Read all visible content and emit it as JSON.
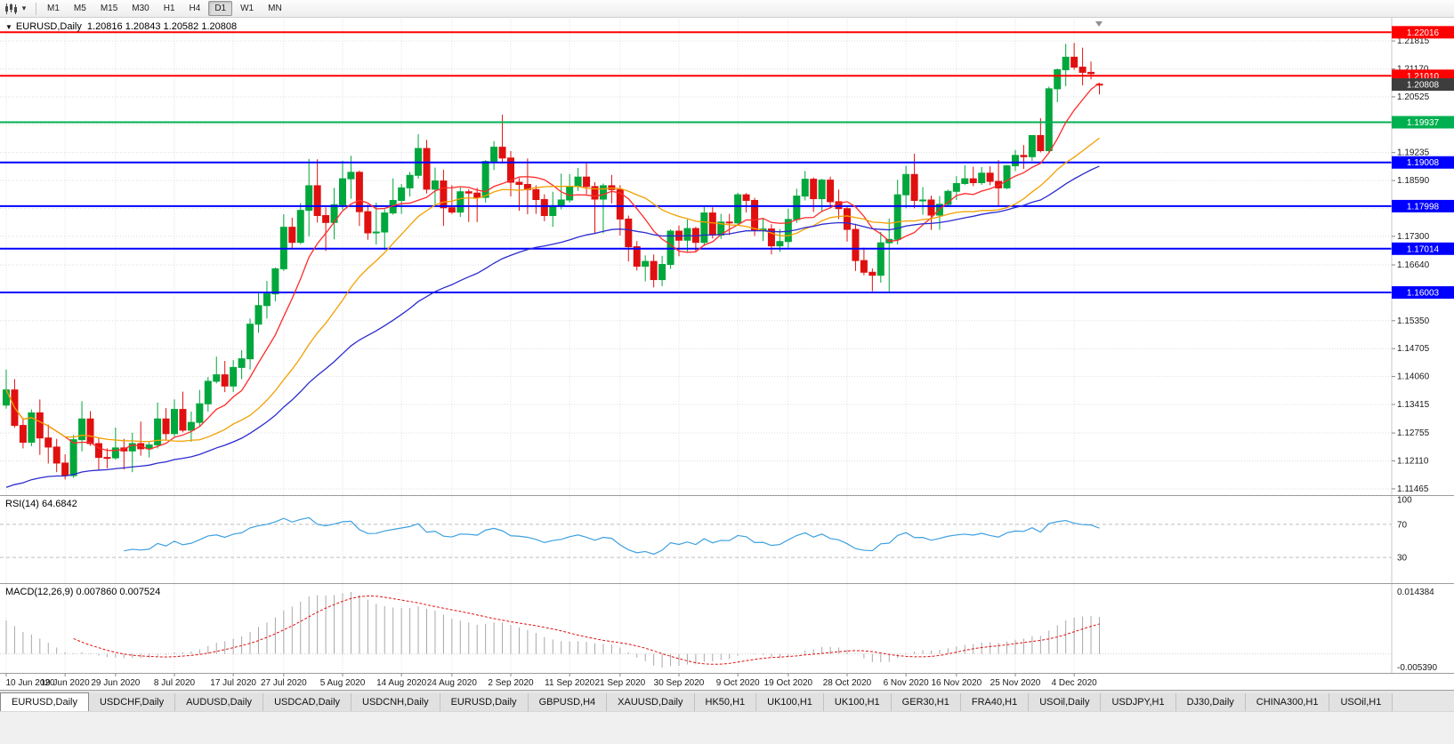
{
  "toolbar": {
    "timeframes": [
      "M1",
      "M5",
      "M15",
      "M30",
      "H1",
      "H4",
      "D1",
      "W1",
      "MN"
    ],
    "active_timeframe": "D1",
    "chart_type_icon": "candlestick-chart",
    "dropdown_caret": "▾"
  },
  "main_chart": {
    "collapse_icon": "▼",
    "symbol_text": "EURUSD,Daily",
    "ohlc_text": "1.20816 1.20843 1.20582 1.20808"
  },
  "rsi_panel": {
    "title_text": "RSI(14) 64.6842",
    "period": 14,
    "levels": [
      70,
      30
    ],
    "axis_labels": [
      "100",
      "70",
      "30"
    ],
    "line_color": "#3da0e0",
    "level_color": "#bfbfbf"
  },
  "macd_panel": {
    "title_text": "MACD(12,26,9) 0.007860 0.007524",
    "fast": 12,
    "slow": 26,
    "signal": 9,
    "axis_labels": [
      "0.014384",
      "-0.005390"
    ],
    "histogram_color": "#a8a8a8",
    "signal_color": "#e01010",
    "slow_seed_offset": -0.0075
  },
  "tabs": {
    "active_index": 0,
    "items": [
      "EURUSD,Daily",
      "USDCHF,Daily",
      "AUDUSD,Daily",
      "USDCAD,Daily",
      "USDCNH,Daily",
      "EURUSD,Daily",
      "GBPUSD,H4",
      "XAUUSD,Daily",
      "HK50,H1",
      "UK100,H1",
      "UK100,H1",
      "GER30,H1",
      "FRA40,H1",
      "USOil,Daily",
      "USDJPY,H1",
      "DJ30,Daily",
      "CHINA300,H1",
      "USOil,H1"
    ]
  },
  "chart_data": {
    "type": "candlestick",
    "symbol": "EURUSD",
    "timeframe": "Daily",
    "ohlc_display": {
      "open": "1.20816",
      "high": "1.20843",
      "low": "1.20582",
      "close": "1.20808"
    },
    "ylim": [
      1.1134,
      1.2231
    ],
    "colors": {
      "bull": "#00a73c",
      "bear": "#e01010",
      "grid": "#dedede",
      "background": "#ffffff",
      "axis_text": "#1a1a1a",
      "separator": "#9c9c9c",
      "shift_marker": "#909090"
    },
    "price_axis_labels": [
      "1.21815",
      "1.21170",
      "1.20525",
      "1.19880",
      "1.19235",
      "1.18590",
      "1.17945",
      "1.17300",
      "1.16640",
      "1.15995",
      "1.15350",
      "1.14705",
      "1.14060",
      "1.13415",
      "1.12755",
      "1.12110",
      "1.11465"
    ],
    "current_price": {
      "value": 1.20808,
      "label": "1.20808",
      "box_color": "#3d3d3d"
    },
    "hlines": [
      {
        "price": 1.22016,
        "label": "1.22016",
        "color": "#ff0000"
      },
      {
        "price": 1.2101,
        "label": "1.21010",
        "color": "#ff0000"
      },
      {
        "price": 1.19937,
        "label": "1.19937",
        "color": "#00b050"
      },
      {
        "price": 1.19008,
        "label": "1.19008",
        "color": "#0000ff"
      },
      {
        "price": 1.17998,
        "label": "1.17998",
        "color": "#0000ff"
      },
      {
        "price": 1.17014,
        "label": "1.17014",
        "color": "#0000ff"
      },
      {
        "price": 1.16003,
        "label": "1.16003",
        "color": "#0000ff"
      }
    ],
    "overlays": [
      {
        "name": "ma-fast",
        "type": "sma",
        "period": 8,
        "color": "#ff2a2a"
      },
      {
        "name": "ma-mid",
        "type": "sma",
        "period": 20,
        "color": "#f2a000"
      },
      {
        "name": "ma-slow",
        "type": "ema",
        "period": 45,
        "color": "#2b2bd0",
        "seed": 1.115
      }
    ],
    "x_ticks": [
      {
        "i": 0,
        "label": "10 Jun 2020"
      },
      {
        "i": 7,
        "label": "19 Jun 2020"
      },
      {
        "i": 13,
        "label": "29 Jun 2020"
      },
      {
        "i": 20,
        "label": "8 Jul 2020"
      },
      {
        "i": 27,
        "label": "17 Jul 2020"
      },
      {
        "i": 33,
        "label": "27 Jul 2020"
      },
      {
        "i": 40,
        "label": "5 Aug 2020"
      },
      {
        "i": 47,
        "label": "14 Aug 2020"
      },
      {
        "i": 53,
        "label": "24 Aug 2020"
      },
      {
        "i": 60,
        "label": "2 Sep 2020"
      },
      {
        "i": 67,
        "label": "11 Sep 2020"
      },
      {
        "i": 73,
        "label": "21 Sep 2020"
      },
      {
        "i": 80,
        "label": "30 Sep 2020"
      },
      {
        "i": 87,
        "label": "9 Oct 2020"
      },
      {
        "i": 93,
        "label": "19 Oct 2020"
      },
      {
        "i": 100,
        "label": "28 Oct 2020"
      },
      {
        "i": 107,
        "label": "6 Nov 2020"
      },
      {
        "i": 113,
        "label": "16 Nov 2020"
      },
      {
        "i": 120,
        "label": "25 Nov 2020"
      },
      {
        "i": 127,
        "label": "4 Dec 2020"
      }
    ],
    "candles": [
      [
        1.134,
        1.1422,
        1.1332,
        1.1375
      ],
      [
        1.1375,
        1.14,
        1.1288,
        1.1293
      ],
      [
        1.1293,
        1.131,
        1.124,
        1.1254
      ],
      [
        1.1254,
        1.133,
        1.1245,
        1.1322
      ],
      [
        1.1322,
        1.1353,
        1.1225,
        1.1264
      ],
      [
        1.1264,
        1.1295,
        1.1205,
        1.1243
      ],
      [
        1.1243,
        1.1262,
        1.1185,
        1.1206
      ],
      [
        1.1206,
        1.1226,
        1.1168,
        1.1177
      ],
      [
        1.1177,
        1.1271,
        1.1172,
        1.126
      ],
      [
        1.126,
        1.1349,
        1.1233,
        1.1308
      ],
      [
        1.1308,
        1.1326,
        1.1246,
        1.1251
      ],
      [
        1.1251,
        1.1263,
        1.119,
        1.1219
      ],
      [
        1.1219,
        1.124,
        1.1194,
        1.1218
      ],
      [
        1.1218,
        1.1288,
        1.1214,
        1.1241
      ],
      [
        1.1241,
        1.1262,
        1.1191,
        1.1234
      ],
      [
        1.1234,
        1.1276,
        1.1185,
        1.1251
      ],
      [
        1.1251,
        1.1302,
        1.1223,
        1.1239
      ],
      [
        1.1239,
        1.1254,
        1.1219,
        1.1248
      ],
      [
        1.1248,
        1.1346,
        1.124,
        1.1308
      ],
      [
        1.1308,
        1.1333,
        1.1259,
        1.1274
      ],
      [
        1.1274,
        1.1353,
        1.1266,
        1.133
      ],
      [
        1.133,
        1.1371,
        1.1277,
        1.1282
      ],
      [
        1.1282,
        1.1325,
        1.1255,
        1.13
      ],
      [
        1.13,
        1.1375,
        1.1291,
        1.1343
      ],
      [
        1.1343,
        1.1405,
        1.1325,
        1.1395
      ],
      [
        1.1395,
        1.1452,
        1.139,
        1.141
      ],
      [
        1.141,
        1.1442,
        1.137,
        1.1384
      ],
      [
        1.1384,
        1.1444,
        1.137,
        1.1427
      ],
      [
        1.1427,
        1.1467,
        1.14,
        1.1447
      ],
      [
        1.1447,
        1.154,
        1.1422,
        1.1527
      ],
      [
        1.1527,
        1.1601,
        1.1507,
        1.157
      ],
      [
        1.157,
        1.1627,
        1.154,
        1.1597
      ],
      [
        1.1597,
        1.1658,
        1.158,
        1.1655
      ],
      [
        1.1655,
        1.1781,
        1.165,
        1.1751
      ],
      [
        1.1751,
        1.1773,
        1.17,
        1.1716
      ],
      [
        1.1716,
        1.1807,
        1.1712,
        1.179
      ],
      [
        1.179,
        1.1909,
        1.173,
        1.1847
      ],
      [
        1.1847,
        1.1908,
        1.1762,
        1.1778
      ],
      [
        1.1778,
        1.1797,
        1.1696,
        1.1762
      ],
      [
        1.1762,
        1.1842,
        1.1723,
        1.1803
      ],
      [
        1.1803,
        1.1905,
        1.1791,
        1.1863
      ],
      [
        1.1863,
        1.1916,
        1.1817,
        1.1878
      ],
      [
        1.1878,
        1.1882,
        1.1754,
        1.1787
      ],
      [
        1.1787,
        1.1804,
        1.1722,
        1.1738
      ],
      [
        1.1738,
        1.1808,
        1.1711,
        1.174
      ],
      [
        1.174,
        1.1793,
        1.1698,
        1.1784
      ],
      [
        1.1784,
        1.1864,
        1.178,
        1.1813
      ],
      [
        1.1813,
        1.1851,
        1.1782,
        1.1842
      ],
      [
        1.1842,
        1.1879,
        1.1822,
        1.1871
      ],
      [
        1.1871,
        1.1966,
        1.1863,
        1.1933
      ],
      [
        1.1933,
        1.1953,
        1.1829,
        1.1839
      ],
      [
        1.1839,
        1.1889,
        1.1803,
        1.1858
      ],
      [
        1.1858,
        1.1884,
        1.1754,
        1.1796
      ],
      [
        1.1796,
        1.1848,
        1.1782,
        1.1786
      ],
      [
        1.1786,
        1.1843,
        1.1775,
        1.1833
      ],
      [
        1.1833,
        1.1839,
        1.1763,
        1.183
      ],
      [
        1.183,
        1.1842,
        1.1763,
        1.182
      ],
      [
        1.182,
        1.1906,
        1.1808,
        1.1903
      ],
      [
        1.1903,
        1.195,
        1.1883,
        1.1936
      ],
      [
        1.1936,
        1.2011,
        1.1898,
        1.1911
      ],
      [
        1.1911,
        1.1927,
        1.1822,
        1.1855
      ],
      [
        1.1855,
        1.1865,
        1.1789,
        1.185
      ],
      [
        1.185,
        1.191,
        1.1781,
        1.1838
      ],
      [
        1.1838,
        1.1848,
        1.1782,
        1.1815
      ],
      [
        1.1815,
        1.1827,
        1.1765,
        1.1778
      ],
      [
        1.1778,
        1.1833,
        1.1752,
        1.1801
      ],
      [
        1.1801,
        1.1875,
        1.1792,
        1.1814
      ],
      [
        1.1814,
        1.1874,
        1.1808,
        1.1845
      ],
      [
        1.1845,
        1.1888,
        1.1835,
        1.1867
      ],
      [
        1.1867,
        1.1899,
        1.1827,
        1.1845
      ],
      [
        1.1845,
        1.1855,
        1.1737,
        1.1816
      ],
      [
        1.1816,
        1.1852,
        1.1737,
        1.1847
      ],
      [
        1.1847,
        1.1872,
        1.1806,
        1.1838
      ],
      [
        1.1838,
        1.1848,
        1.1732,
        1.177
      ],
      [
        1.177,
        1.1778,
        1.1672,
        1.1706
      ],
      [
        1.1706,
        1.1719,
        1.1651,
        1.1661
      ],
      [
        1.1661,
        1.1686,
        1.1626,
        1.1672
      ],
      [
        1.1672,
        1.1688,
        1.1612,
        1.163
      ],
      [
        1.163,
        1.1685,
        1.1615,
        1.1665
      ],
      [
        1.1665,
        1.1746,
        1.1655,
        1.1742
      ],
      [
        1.1742,
        1.1755,
        1.1684,
        1.1721
      ],
      [
        1.1721,
        1.1769,
        1.1695,
        1.1748
      ],
      [
        1.1748,
        1.1752,
        1.1695,
        1.1716
      ],
      [
        1.1716,
        1.1798,
        1.1708,
        1.1784
      ],
      [
        1.1784,
        1.1797,
        1.1725,
        1.1733
      ],
      [
        1.1733,
        1.1782,
        1.1724,
        1.1763
      ],
      [
        1.1763,
        1.1782,
        1.1733,
        1.1761
      ],
      [
        1.1761,
        1.1831,
        1.1756,
        1.1826
      ],
      [
        1.1826,
        1.183,
        1.1785,
        1.1813
      ],
      [
        1.1813,
        1.1819,
        1.1731,
        1.1745
      ],
      [
        1.1745,
        1.1771,
        1.1719,
        1.1747
      ],
      [
        1.1747,
        1.1758,
        1.1688,
        1.1708
      ],
      [
        1.1708,
        1.1747,
        1.1694,
        1.1718
      ],
      [
        1.1718,
        1.1794,
        1.1704,
        1.1769
      ],
      [
        1.1769,
        1.184,
        1.1761,
        1.1823
      ],
      [
        1.1823,
        1.1881,
        1.1813,
        1.1862
      ],
      [
        1.1862,
        1.1866,
        1.1786,
        1.1817
      ],
      [
        1.1817,
        1.1863,
        1.1786,
        1.186
      ],
      [
        1.186,
        1.1868,
        1.18,
        1.181
      ],
      [
        1.181,
        1.1838,
        1.177,
        1.1794
      ],
      [
        1.1794,
        1.18,
        1.1718,
        1.1746
      ],
      [
        1.1746,
        1.1759,
        1.165,
        1.1674
      ],
      [
        1.1674,
        1.1704,
        1.164,
        1.1647
      ],
      [
        1.1647,
        1.1656,
        1.1603,
        1.164
      ],
      [
        1.164,
        1.174,
        1.1623,
        1.1715
      ],
      [
        1.1715,
        1.1771,
        1.1602,
        1.1723
      ],
      [
        1.1723,
        1.1861,
        1.1711,
        1.1826
      ],
      [
        1.1826,
        1.1893,
        1.1795,
        1.1873
      ],
      [
        1.1873,
        1.1921,
        1.1795,
        1.1813
      ],
      [
        1.1813,
        1.1844,
        1.178,
        1.1814
      ],
      [
        1.1814,
        1.1824,
        1.1745,
        1.1779
      ],
      [
        1.1779,
        1.1823,
        1.1745,
        1.1804
      ],
      [
        1.1804,
        1.1838,
        1.1799,
        1.1834
      ],
      [
        1.1834,
        1.1869,
        1.1814,
        1.1852
      ],
      [
        1.1852,
        1.1894,
        1.1849,
        1.1863
      ],
      [
        1.1863,
        1.1891,
        1.1846,
        1.1854
      ],
      [
        1.1854,
        1.189,
        1.1849,
        1.1876
      ],
      [
        1.1876,
        1.1892,
        1.1848,
        1.1857
      ],
      [
        1.1857,
        1.1906,
        1.1799,
        1.1842
      ],
      [
        1.1842,
        1.1895,
        1.1839,
        1.1893
      ],
      [
        1.1893,
        1.193,
        1.1881,
        1.1917
      ],
      [
        1.1917,
        1.1941,
        1.1886,
        1.1914
      ],
      [
        1.1914,
        1.1964,
        1.1904,
        1.1963
      ],
      [
        1.1963,
        1.2003,
        1.1924,
        1.1928
      ],
      [
        1.1928,
        1.2076,
        1.1923,
        1.2071
      ],
      [
        1.2071,
        1.2118,
        1.204,
        1.2115
      ],
      [
        1.2115,
        1.2175,
        1.2077,
        1.2144
      ],
      [
        1.2144,
        1.2177,
        1.2115,
        1.2121
      ],
      [
        1.2121,
        1.2166,
        1.2079,
        1.2109
      ],
      [
        1.2109,
        1.2134,
        1.2093,
        1.2106
      ],
      [
        1.20816,
        1.20843,
        1.20582,
        1.20808
      ]
    ]
  }
}
